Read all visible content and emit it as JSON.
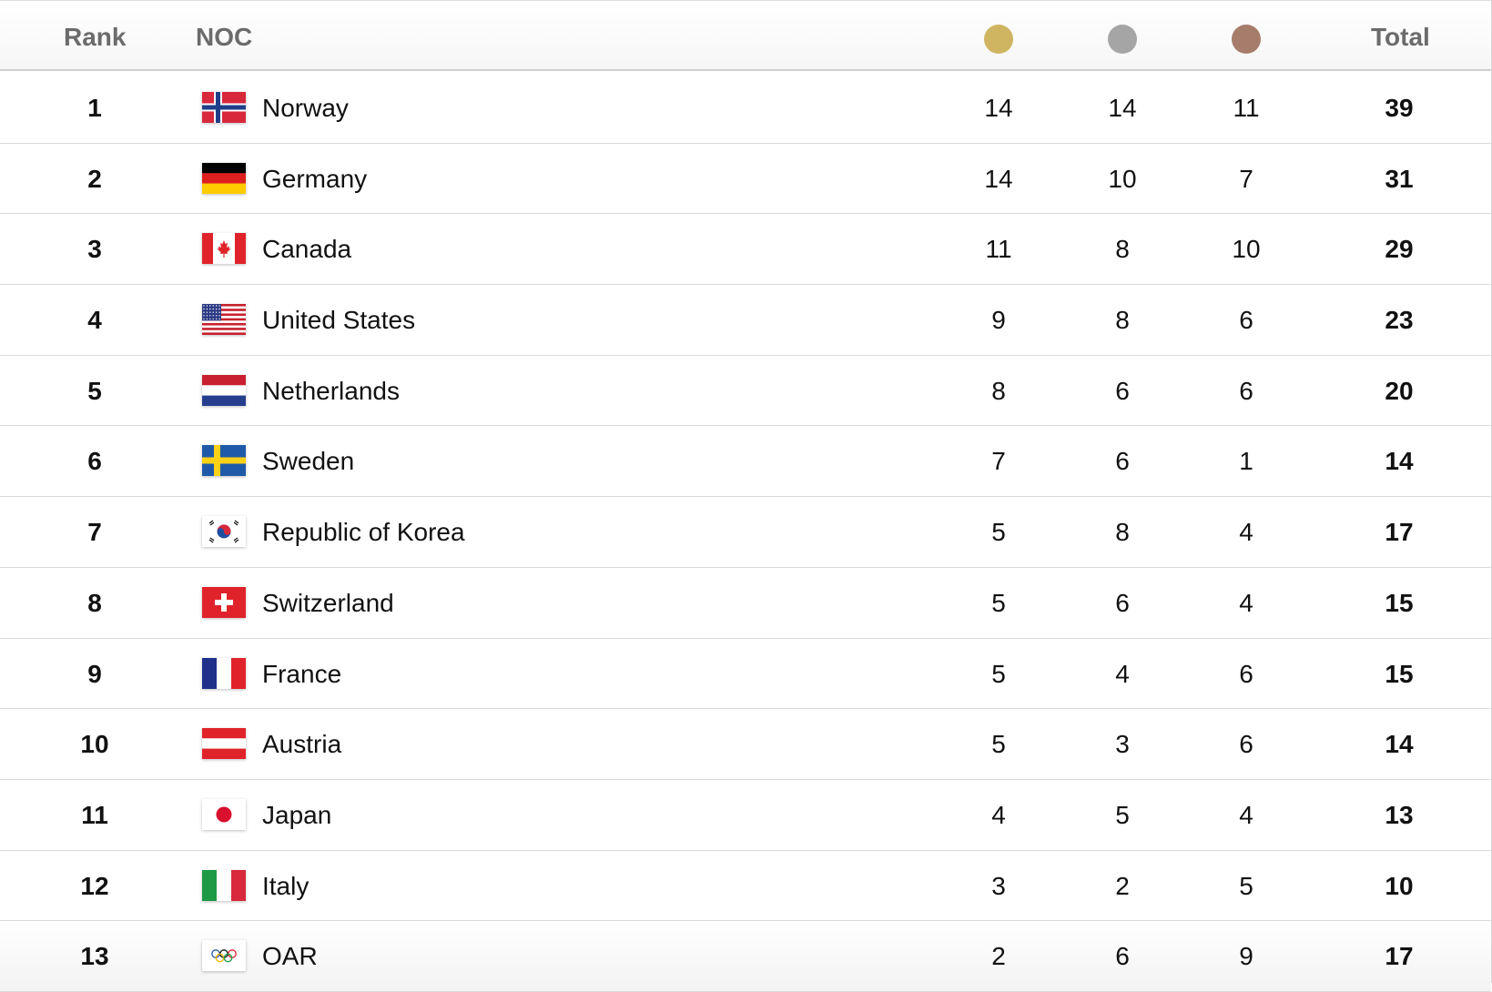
{
  "header": {
    "rank_label": "Rank",
    "noc_label": "NOC",
    "total_label": "Total",
    "medal_icons": {
      "gold": "gold-medal-icon",
      "silver": "silver-medal-icon",
      "bronze": "bronze-medal-icon"
    }
  },
  "colors": {
    "gold": "#cfb561",
    "silver": "#a5a5a5",
    "bronze": "#a67c6a",
    "header_text": "#6b6b6b"
  },
  "rows": [
    {
      "rank": "1",
      "country": "Norway",
      "flag": "norway-flag-icon",
      "gold": "14",
      "silver": "14",
      "bronze": "11",
      "total": "39"
    },
    {
      "rank": "2",
      "country": "Germany",
      "flag": "germany-flag-icon",
      "gold": "14",
      "silver": "10",
      "bronze": "7",
      "total": "31"
    },
    {
      "rank": "3",
      "country": "Canada",
      "flag": "canada-flag-icon",
      "gold": "11",
      "silver": "8",
      "bronze": "10",
      "total": "29"
    },
    {
      "rank": "4",
      "country": "United States",
      "flag": "united-states-flag-icon",
      "gold": "9",
      "silver": "8",
      "bronze": "6",
      "total": "23"
    },
    {
      "rank": "5",
      "country": "Netherlands",
      "flag": "netherlands-flag-icon",
      "gold": "8",
      "silver": "6",
      "bronze": "6",
      "total": "20"
    },
    {
      "rank": "6",
      "country": "Sweden",
      "flag": "sweden-flag-icon",
      "gold": "7",
      "silver": "6",
      "bronze": "1",
      "total": "14"
    },
    {
      "rank": "7",
      "country": "Republic of Korea",
      "flag": "korea-flag-icon",
      "gold": "5",
      "silver": "8",
      "bronze": "4",
      "total": "17"
    },
    {
      "rank": "8",
      "country": "Switzerland",
      "flag": "switzerland-flag-icon",
      "gold": "5",
      "silver": "6",
      "bronze": "4",
      "total": "15"
    },
    {
      "rank": "9",
      "country": "France",
      "flag": "france-flag-icon",
      "gold": "5",
      "silver": "4",
      "bronze": "6",
      "total": "15"
    },
    {
      "rank": "10",
      "country": "Austria",
      "flag": "austria-flag-icon",
      "gold": "5",
      "silver": "3",
      "bronze": "6",
      "total": "14"
    },
    {
      "rank": "11",
      "country": "Japan",
      "flag": "japan-flag-icon",
      "gold": "4",
      "silver": "5",
      "bronze": "4",
      "total": "13"
    },
    {
      "rank": "12",
      "country": "Italy",
      "flag": "italy-flag-icon",
      "gold": "3",
      "silver": "2",
      "bronze": "5",
      "total": "10"
    },
    {
      "rank": "13",
      "country": "OAR",
      "flag": "olympic-rings-flag-icon",
      "gold": "2",
      "silver": "6",
      "bronze": "9",
      "total": "17"
    }
  ]
}
